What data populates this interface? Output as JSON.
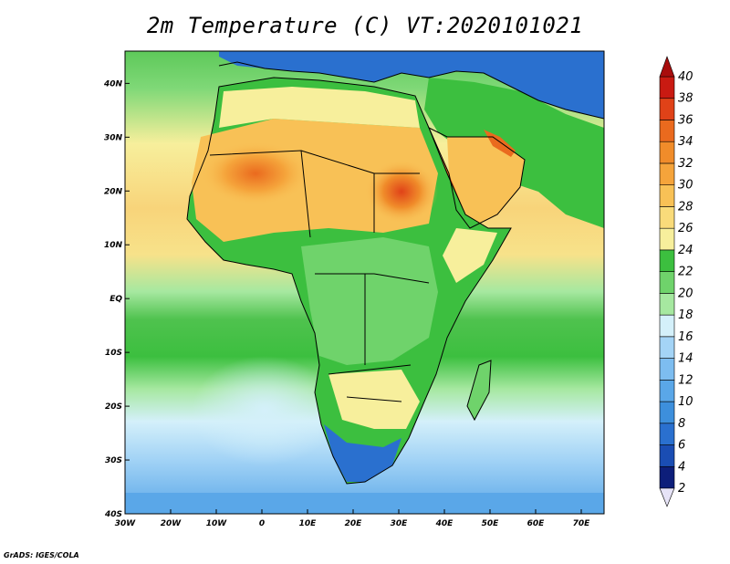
{
  "title": "2m Temperature (C) VT:2020101021",
  "credit": "GrADS: IGES/COLA",
  "map": {
    "lon_range": [
      -30,
      75
    ],
    "lat_range": [
      -40,
      46
    ],
    "x_ticks": [
      "30W",
      "20W",
      "10W",
      "0",
      "10E",
      "20E",
      "30E",
      "40E",
      "50E",
      "60E",
      "70E"
    ],
    "x_tick_lons": [
      -30,
      -20,
      -10,
      0,
      10,
      20,
      30,
      40,
      50,
      60,
      70
    ],
    "y_ticks": [
      "40S",
      "30S",
      "20S",
      "10S",
      "EQ",
      "10N",
      "20N",
      "30N",
      "40N"
    ],
    "y_tick_lats": [
      -40,
      -30,
      -20,
      -10,
      0,
      10,
      20,
      30,
      40
    ]
  },
  "colorbar": {
    "labels": [
      "2",
      "4",
      "6",
      "8",
      "10",
      "12",
      "14",
      "16",
      "18",
      "20",
      "22",
      "24",
      "26",
      "28",
      "30",
      "32",
      "34",
      "36",
      "38",
      "40"
    ],
    "colors": [
      "#0d1e7a",
      "#1a4db3",
      "#2a70cf",
      "#3d8fdc",
      "#5aa7e8",
      "#7dbdf0",
      "#a4d4f6",
      "#d4f0fa",
      "#a6e8a0",
      "#6fd36b",
      "#3cbf3f",
      "#f7ef9c",
      "#f9db7a",
      "#f8c156",
      "#f5a43b",
      "#f08c2a",
      "#ea6a1e",
      "#e04218",
      "#c91a12",
      "#a80d0d"
    ],
    "under_color": "#e6e3f7",
    "over_color": "#a80d0d"
  }
}
